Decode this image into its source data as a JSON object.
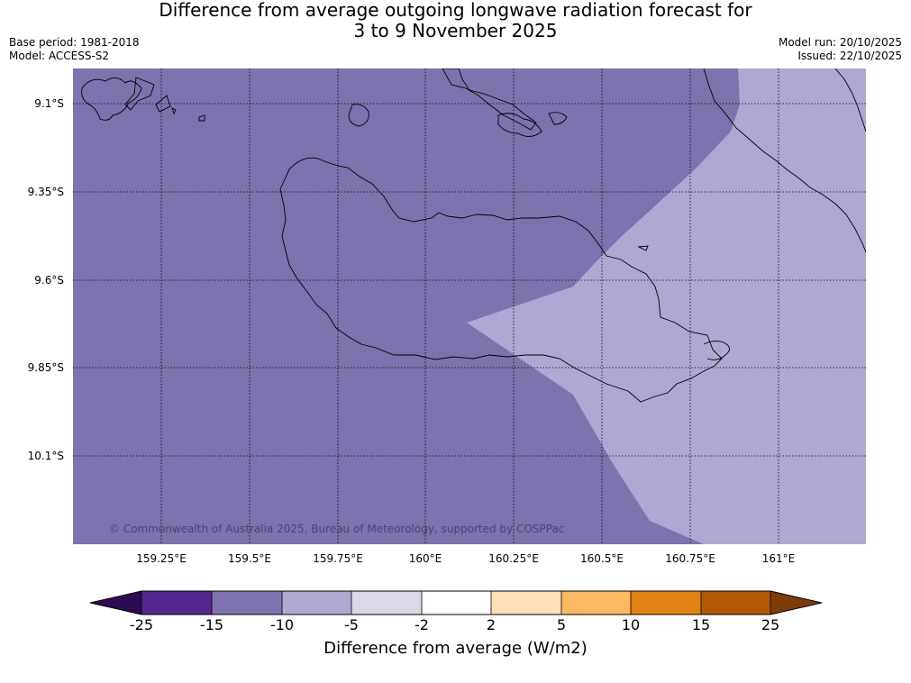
{
  "title": {
    "line1": "Difference from average outgoing longwave radiation forecast for",
    "line2": "3 to 9 November 2025"
  },
  "meta_left": {
    "base_period": "Base period: 1981-2018",
    "model": "Model: ACCESS-S2"
  },
  "meta_right": {
    "model_run": "Model run: 20/10/2025",
    "issued": "Issued: 22/10/2025"
  },
  "map": {
    "lat_labels": [
      "9.1°S",
      "9.35°S",
      "9.6°S",
      "9.85°S",
      "10.1°S"
    ],
    "lon_labels": [
      "159.25°E",
      "159.5°E",
      "159.75°E",
      "160°E",
      "160.25°E",
      "160.5°E",
      "160.75°E",
      "161°E"
    ],
    "copyright": "© Commonwealth of Australia 2025, Bureau of Meteorology, supported by COSPPac",
    "fill_colors": {
      "band_minus15_to_minus10": "#7e73ae",
      "band_minus10_to_minus5": "#b0a8d2"
    },
    "coast_color": "#000000"
  },
  "colorbar": {
    "label": "Difference from average (W/m2)",
    "ticks": [
      "-25",
      "-15",
      "-10",
      "-5",
      "-2",
      "2",
      "5",
      "10",
      "15",
      "25"
    ],
    "colors": [
      "#2d0c52",
      "#54278f",
      "#7e73ae",
      "#b0a8d2",
      "#d9d9ea",
      "#ffffff",
      "#fee0b6",
      "#fdb863",
      "#e08214",
      "#b35806",
      "#7f3b08"
    ]
  }
}
